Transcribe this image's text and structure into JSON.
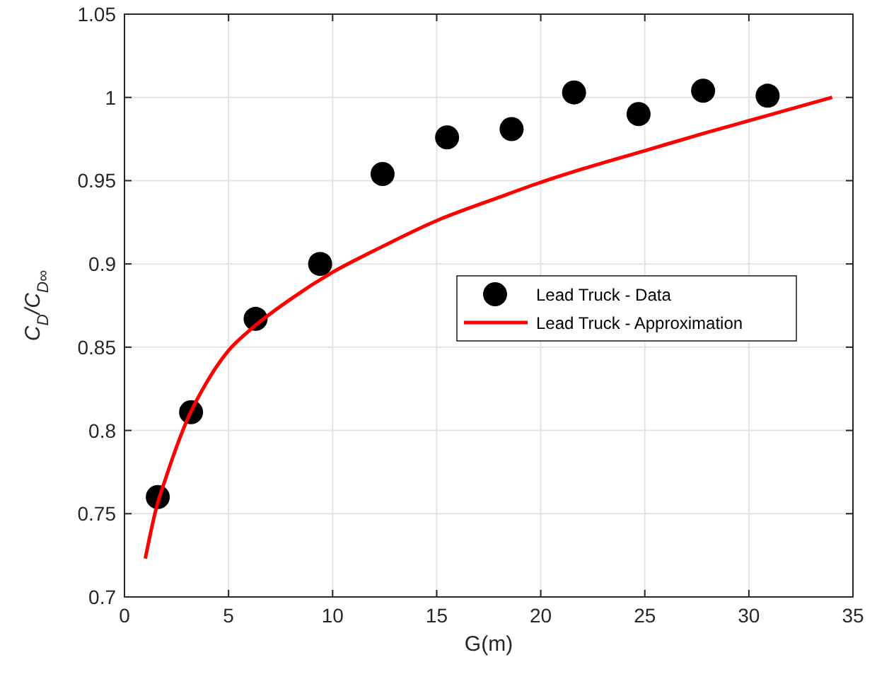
{
  "chart_data": {
    "type": "scatter",
    "xlabel": "G(m)",
    "ylabel": "C$_{D}$/C$_{D∞}$",
    "xlim": [
      0,
      35
    ],
    "xticks": [
      0,
      5,
      10,
      15,
      20,
      25,
      30,
      35
    ],
    "ylim": [
      0.7,
      1.05
    ],
    "yticks": [
      0.7,
      0.75,
      0.8,
      0.85,
      0.9,
      0.95,
      1,
      1.05
    ],
    "grid": true,
    "legend": "right",
    "series": [
      {
        "name": "Lead Truck - Data",
        "marker": "circle",
        "color": "#000000",
        "x": [
          1.6,
          3.2,
          6.3,
          9.4,
          12.4,
          15.5,
          18.6,
          21.6,
          24.7,
          27.8,
          30.9
        ],
        "values": [
          0.76,
          0.811,
          0.867,
          0.9,
          0.954,
          0.976,
          0.981,
          1.003,
          0.99,
          1.004,
          1.001
        ]
      },
      {
        "name": "Lead Truck - Approximation",
        "type": "line",
        "marker": "none",
        "line_style": "solid",
        "color": "#ff0000",
        "x": [
          1,
          1.5,
          2,
          3,
          4,
          5,
          6,
          8,
          10,
          12,
          15,
          18,
          20,
          22,
          25,
          28,
          30,
          32,
          34
        ],
        "values": [
          0.723,
          0.752,
          0.772,
          0.806,
          0.83,
          0.848,
          0.86,
          0.879,
          0.895,
          0.908,
          0.926,
          0.94,
          0.949,
          0.957,
          0.968,
          0.979,
          0.986,
          0.993,
          1.0
        ]
      }
    ]
  }
}
